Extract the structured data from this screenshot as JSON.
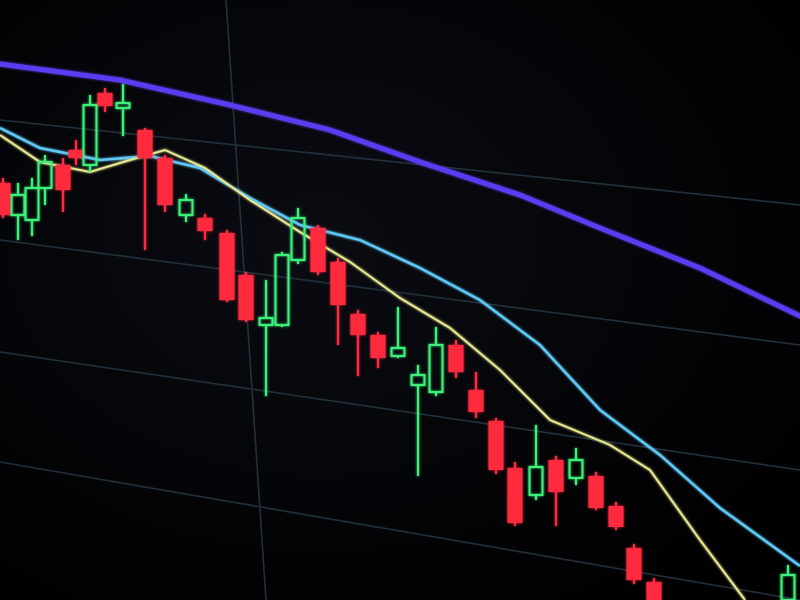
{
  "scene": {
    "subject": "candlestick-chart-on-screen",
    "colors": {
      "bullish": "#3ef07a",
      "bearish": "#ff2a3c",
      "ma_long": "#5a3cf0",
      "ma_mid": "#5ec8f5",
      "ma_short": "#e8e890",
      "grid": "#22303c",
      "background": "#000000"
    }
  }
}
